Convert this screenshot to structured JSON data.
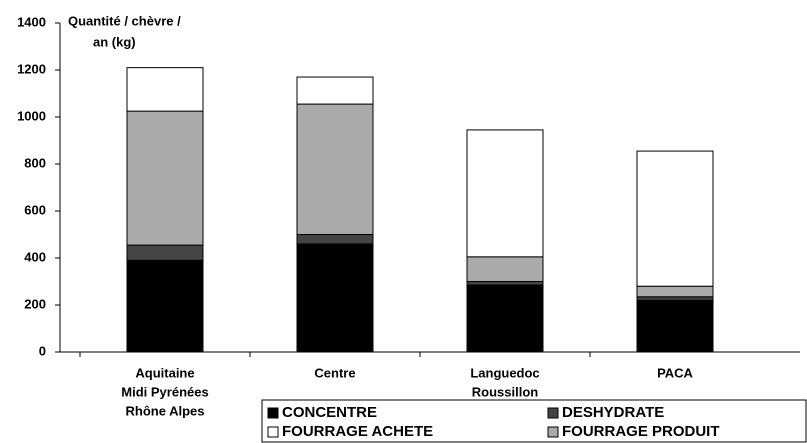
{
  "chart_data": {
    "type": "stacked_bar",
    "y_label": [
      "Quantité / chèvre /",
      "an (kg)"
    ],
    "categories": [
      [
        "Aquitaine",
        "Midi Pyrénées",
        "Rhône Alpes"
      ],
      [
        "Centre"
      ],
      [
        "Languedoc",
        "Roussillon"
      ],
      [
        "PACA"
      ]
    ],
    "series": [
      {
        "name": "CONCENTRE",
        "color": "#000000",
        "values": [
          390,
          460,
          285,
          220
        ]
      },
      {
        "name": "DESHYDRATE",
        "color": "#444444",
        "values": [
          65,
          40,
          15,
          15
        ]
      },
      {
        "name": "FOURRAGE PRODUIT",
        "color": "#aaaaaa",
        "values": [
          570,
          555,
          105,
          45
        ]
      },
      {
        "name": "FOURRAGE ACHETE",
        "color": "#ffffff",
        "values": [
          185,
          115,
          540,
          575
        ]
      }
    ],
    "ylim": [
      0,
      1400
    ],
    "yticks": [
      0,
      200,
      400,
      600,
      800,
      1000,
      1200,
      1400
    ],
    "grid": false
  }
}
